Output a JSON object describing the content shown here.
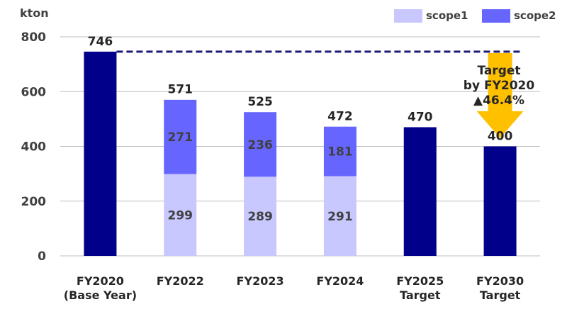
{
  "chart_data": {
    "type": "bar",
    "ylabel": "kton",
    "ylim": [
      0,
      800
    ],
    "yticks": [
      0,
      200,
      400,
      600,
      800
    ],
    "categories": [
      [
        "FY2020",
        "(Base Year)"
      ],
      [
        "FY2022"
      ],
      [
        "FY2023"
      ],
      [
        "FY2024"
      ],
      [
        "FY2025",
        "Target"
      ],
      [
        "FY2030",
        "Target"
      ]
    ],
    "series": [
      {
        "name": "scope1",
        "values": [
          null,
          299,
          289,
          291,
          null,
          null
        ]
      },
      {
        "name": "scope2",
        "values": [
          null,
          271,
          236,
          181,
          null,
          null
        ]
      }
    ],
    "totals": [
      746,
      571,
      525,
      472,
      470,
      400
    ],
    "total_labels": [
      "746",
      "571",
      "525",
      "472",
      "470",
      "400"
    ],
    "scope1_labels": [
      "",
      "299",
      "289",
      "291",
      "",
      ""
    ],
    "scope2_labels": [
      "",
      "271",
      "236",
      "181",
      "",
      ""
    ],
    "reference_line": {
      "value": 746,
      "style": "dashed"
    },
    "annotation": {
      "lines": [
        "Target",
        "by FY2020",
        "▲46.4%"
      ]
    },
    "legend_position": "top-right",
    "colors": {
      "total": "#00008b",
      "scope1": "#c8c8ff",
      "scope2": "#6666ff",
      "reference_line": "#1c1c7a",
      "arrow": "#ffc000",
      "grid": "#bfbfbf"
    }
  }
}
